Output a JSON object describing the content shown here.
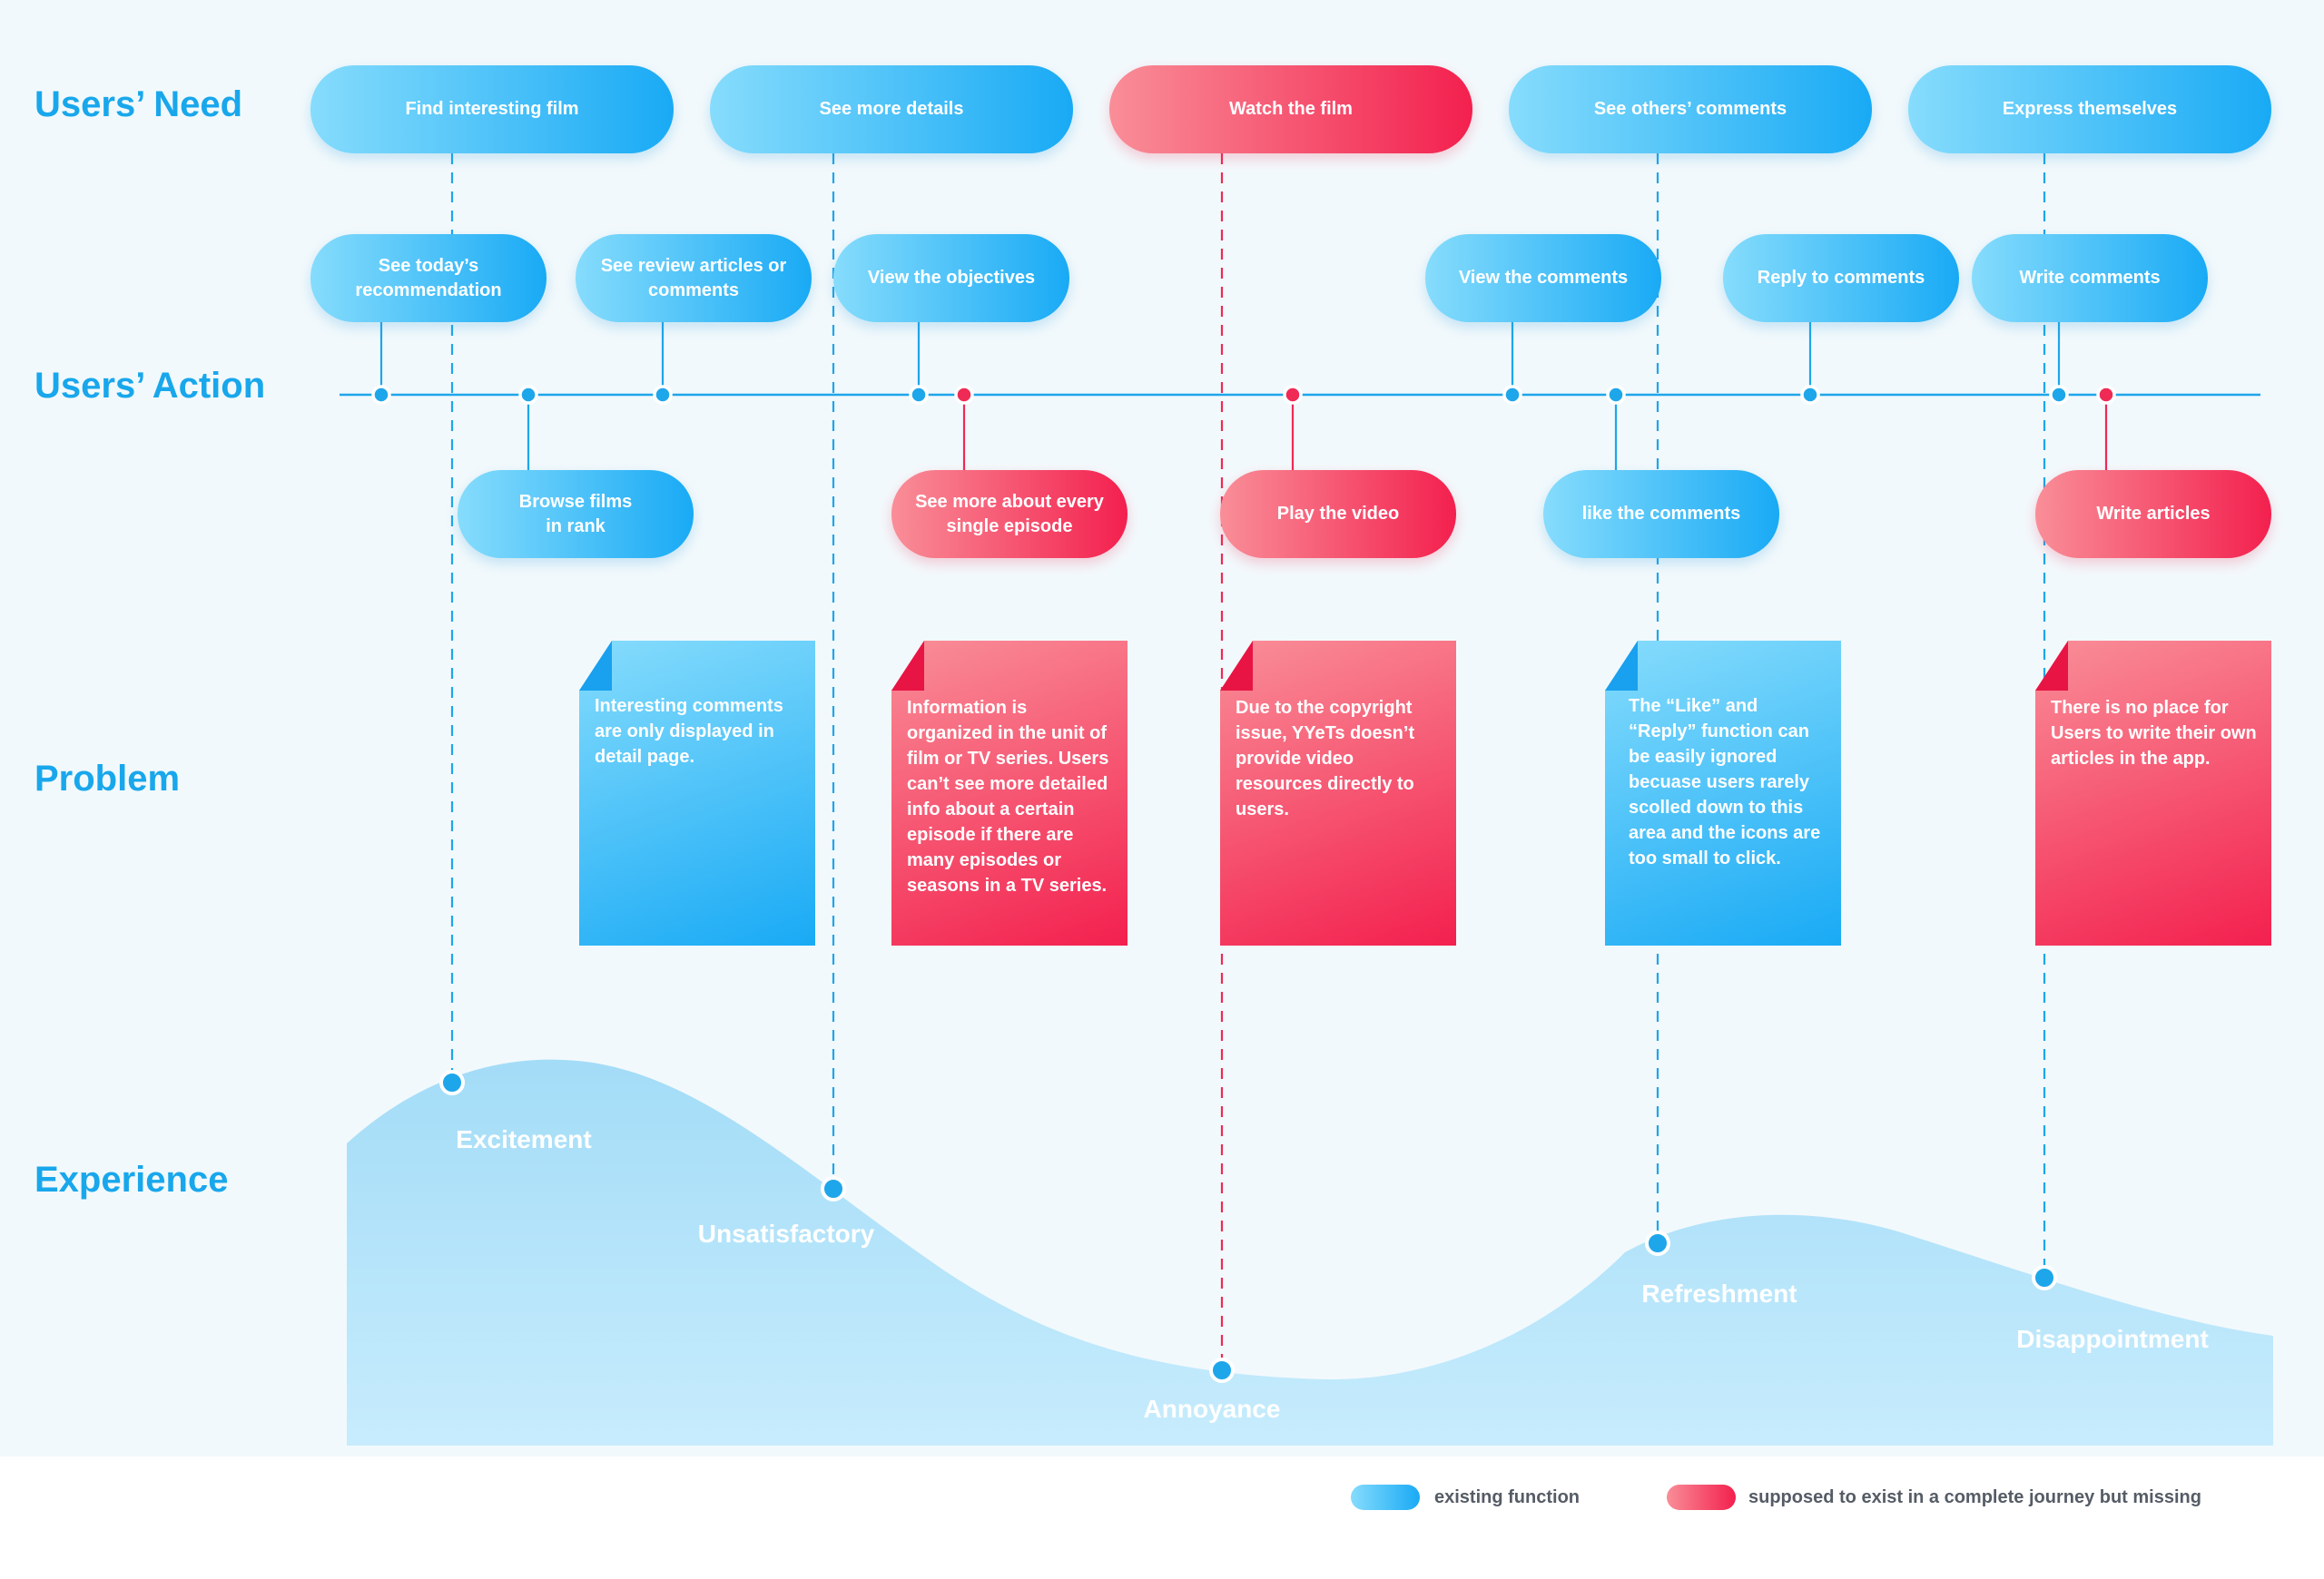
{
  "rows": {
    "need": "Users’ Need",
    "action": "Users’ Action",
    "problem": "Problem",
    "experience": "Experience"
  },
  "needs": [
    {
      "label": "Find interesting film",
      "kind": "existing"
    },
    {
      "label": "See more details",
      "kind": "existing"
    },
    {
      "label": "Watch the film",
      "kind": "missing"
    },
    {
      "label": "See others’ comments",
      "kind": "existing"
    },
    {
      "label": "Express themselves",
      "kind": "existing"
    }
  ],
  "actions_top": [
    {
      "label": "See today’s recommendation",
      "kind": "existing"
    },
    {
      "label": "See review articles or comments",
      "kind": "existing"
    },
    {
      "label": "View the objectives",
      "kind": "existing"
    },
    {
      "label": "View the comments",
      "kind": "existing"
    },
    {
      "label": "Reply to comments",
      "kind": "existing"
    },
    {
      "label": "Write comments",
      "kind": "existing"
    }
  ],
  "actions_bottom": [
    {
      "label": "Browse films in rank",
      "kind": "existing"
    },
    {
      "label": "See more about every single episode",
      "kind": "missing"
    },
    {
      "label": "Play the video",
      "kind": "missing"
    },
    {
      "label": "like the comments",
      "kind": "existing"
    },
    {
      "label": "Write articles",
      "kind": "missing"
    }
  ],
  "problems": [
    {
      "text": "Interesting comments are only displayed in detail page.",
      "kind": "existing"
    },
    {
      "text": "Information is organized in the unit of film or TV series. Users can’t see more detailed info about a certain episode if there are many episodes or seasons in a TV series.",
      "kind": "missing"
    },
    {
      "text": "Due to the copyright issue, YYeTs doesn’t provide video resources directly to users.",
      "kind": "missing"
    },
    {
      "text": "The “Like” and “Reply” function can be easily ignored becuase users rarely scolled down to this area and the icons are too small to click.",
      "kind": "existing"
    },
    {
      "text": "There is no place for Users to write their own articles in the app.",
      "kind": "missing"
    }
  ],
  "experience": [
    {
      "label": "Excitement"
    },
    {
      "label": "Unsatisfactory"
    },
    {
      "label": "Annoyance"
    },
    {
      "label": "Refreshment"
    },
    {
      "label": "Disappointment"
    }
  ],
  "legend": {
    "existing": "existing function",
    "missing": "supposed to exist in a complete journey but missing"
  },
  "colors": {
    "existing_start": "#86dcfc",
    "existing_end": "#19aaf5",
    "missing_start": "#f98e98",
    "missing_end": "#f3204e",
    "label": "#19a7ec",
    "axis": "#1ea6ea",
    "curve_top": "#a3dcf7",
    "curve_bottom": "#c7ecfd"
  }
}
